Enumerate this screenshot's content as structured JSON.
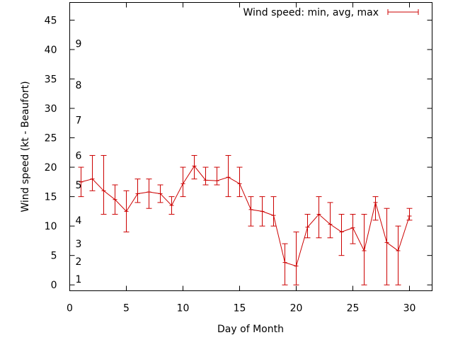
{
  "chart_data": {
    "type": "line",
    "xlabel": "Day of Month",
    "ylabel": "Wind speed (kt - Beaufort)",
    "xlim": [
      0,
      32
    ],
    "ylim": [
      -1,
      48
    ],
    "xticks": [
      0,
      5,
      10,
      15,
      20,
      25,
      30
    ],
    "yticks": [
      0,
      5,
      10,
      15,
      20,
      25,
      30,
      35,
      40,
      45
    ],
    "grid": false,
    "legend_position": "top-right",
    "beaufort_labels": [
      {
        "label": "1",
        "value": 1
      },
      {
        "label": "2",
        "value": 4
      },
      {
        "label": "3",
        "value": 7
      },
      {
        "label": "4",
        "value": 11
      },
      {
        "label": "5",
        "value": 17
      },
      {
        "label": "6",
        "value": 22
      },
      {
        "label": "7",
        "value": 28
      },
      {
        "label": "8",
        "value": 34
      },
      {
        "label": "9",
        "value": 41
      }
    ],
    "series": [
      {
        "name": "Wind speed: min, avg, max",
        "color": "#cc0000",
        "x": [
          1,
          2,
          3,
          4,
          5,
          6,
          7,
          8,
          9,
          10,
          11,
          12,
          13,
          14,
          15,
          16,
          17,
          18,
          19,
          20,
          21,
          22,
          23,
          24,
          25,
          26,
          27,
          28,
          29,
          30
        ],
        "avg": [
          17.5,
          18,
          16,
          14.5,
          12.5,
          15.5,
          15.8,
          15.5,
          13.5,
          17.2,
          20.2,
          17.8,
          17.7,
          18.3,
          17.2,
          12.8,
          12.5,
          11.8,
          3.8,
          3.2,
          9.8,
          12,
          10.3,
          9,
          9.7,
          5.8,
          14,
          7.2,
          5.8,
          11.7
        ],
        "min": [
          15,
          16,
          12,
          12,
          9,
          14,
          13,
          14,
          12,
          15,
          18,
          17,
          17,
          15,
          15,
          10,
          10,
          10,
          0,
          0,
          8,
          8,
          8,
          5,
          7,
          0,
          11,
          0,
          0,
          11
        ],
        "max": [
          20,
          22,
          22,
          17,
          16,
          18,
          18,
          17,
          15,
          20,
          22,
          20,
          20,
          22,
          20,
          15,
          15,
          15,
          7,
          9,
          12,
          15,
          14,
          12,
          12,
          12,
          15,
          13,
          10,
          13
        ]
      }
    ]
  }
}
